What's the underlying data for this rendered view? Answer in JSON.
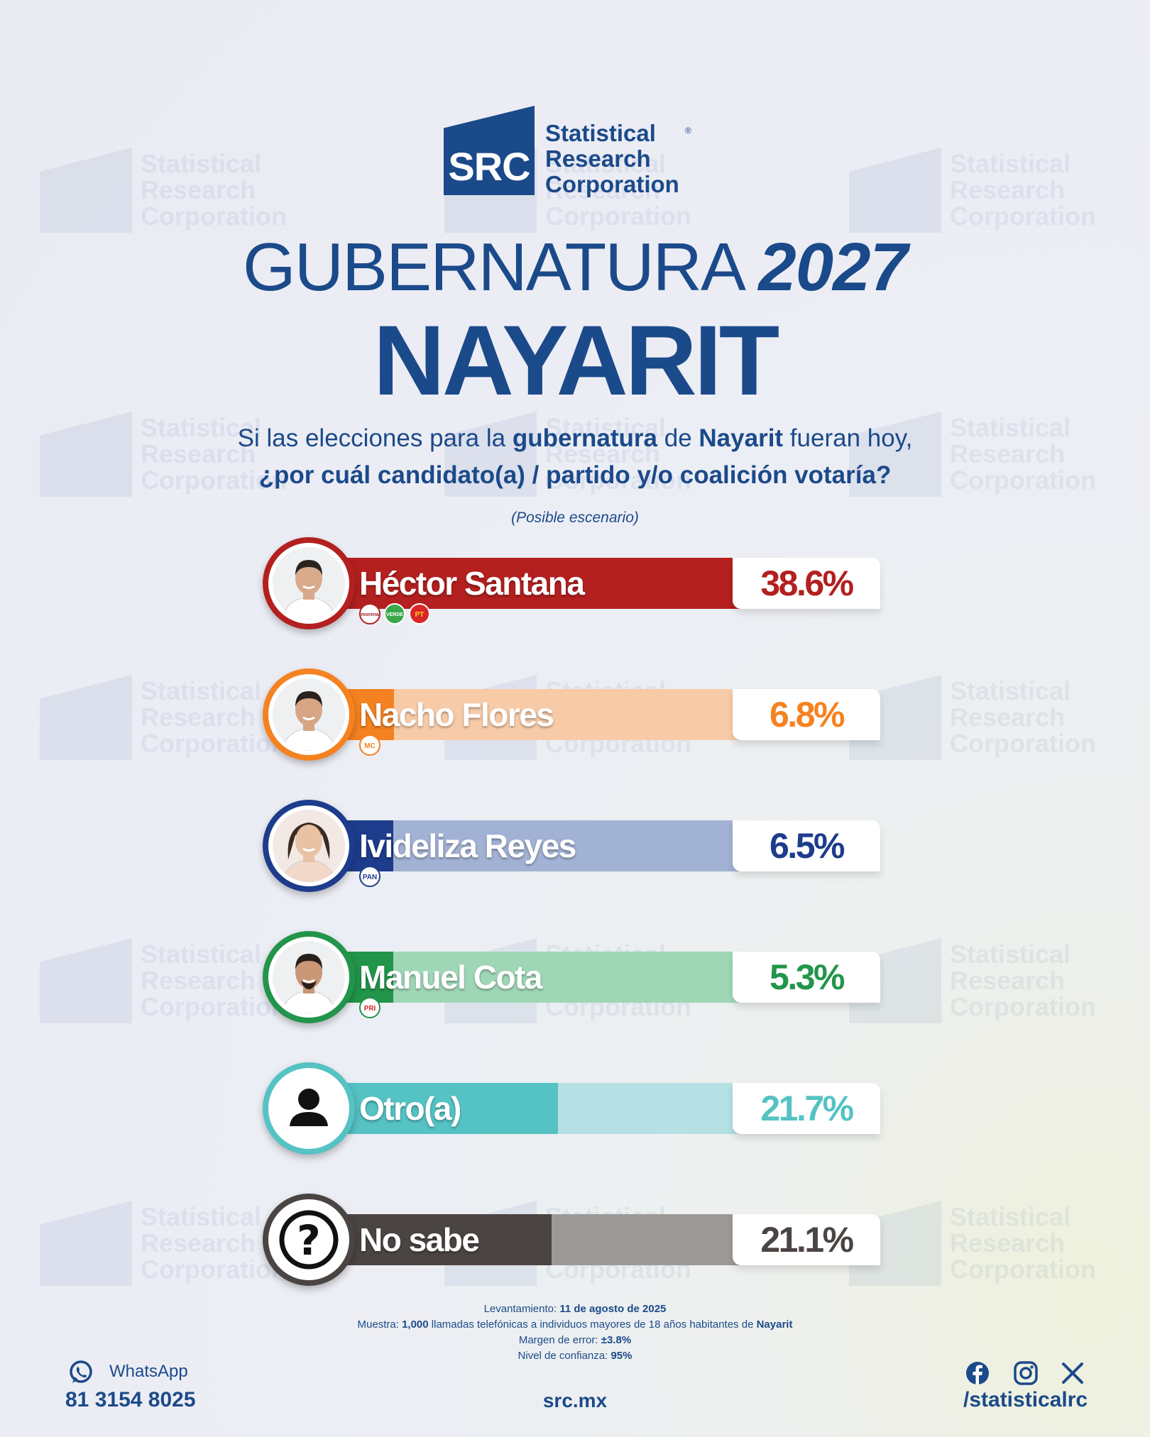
{
  "brand": {
    "logo_text": "SRC",
    "name_line1": "Statistical",
    "name_line2": "Research",
    "name_line3": "Corporation",
    "registered": "®"
  },
  "header": {
    "title_light": "GUBERNATURA",
    "title_year": "2027",
    "state": "NAYARIT",
    "question_part1": "Si las elecciones para la ",
    "question_bold1": "gubernatura",
    "question_part2": " de ",
    "question_bold2": "Nayarit",
    "question_part3": " fueran hoy,",
    "question_line2": "¿por cuál candidato(a) / partido y/o coalición votaría?",
    "scenario": "(Posible escenario)"
  },
  "chart_data": {
    "type": "bar",
    "orientation": "horizontal",
    "categories": [
      "Héctor Santana",
      "Nacho Flores",
      "Ivideliza Reyes",
      "Manuel Cota",
      "Otro(a)",
      "No sabe"
    ],
    "values": [
      38.6,
      6.8,
      6.5,
      5.3,
      21.7,
      21.1
    ],
    "labels": [
      "38.6%",
      "6.8%",
      "6.5%",
      "5.3%",
      "21.7%",
      "21.1%"
    ],
    "parties": [
      [
        "morena",
        "VERDE",
        "PT"
      ],
      [
        "MC"
      ],
      [
        "PAN"
      ],
      [
        "PRI"
      ],
      [],
      []
    ],
    "colors": [
      "#b3201f",
      "#f58220",
      "#1d3c8c",
      "#22954a",
      "#55c2c4",
      "#4a4442"
    ],
    "track_colors": [
      "#d9a9ad",
      "#f8cba8",
      "#a2b2d4",
      "#9fd7b6",
      "#b5e1e4",
      "#9d9997"
    ]
  },
  "footer": {
    "levantamiento_label": "Levantamiento: ",
    "levantamiento_value": "11 de agosto de 2025",
    "muestra_label": "Muestra: ",
    "muestra_value": "1,000",
    "muestra_text": " llamadas telefónicas a individuos mayores de 18 años habitantes de ",
    "muestra_state": "Nayarit",
    "margen_label": "Margen de error: ",
    "margen_value": "±3.8%",
    "nivel_label": "Nivel de confianza: ",
    "nivel_value": "95%",
    "whatsapp_label": "WhatsApp",
    "whatsapp_phone": "81 3154 8025",
    "website": "src.mx",
    "social_handle": "/statisticalrc",
    "social_icons": [
      "facebook-icon",
      "instagram-icon",
      "x-icon"
    ]
  }
}
